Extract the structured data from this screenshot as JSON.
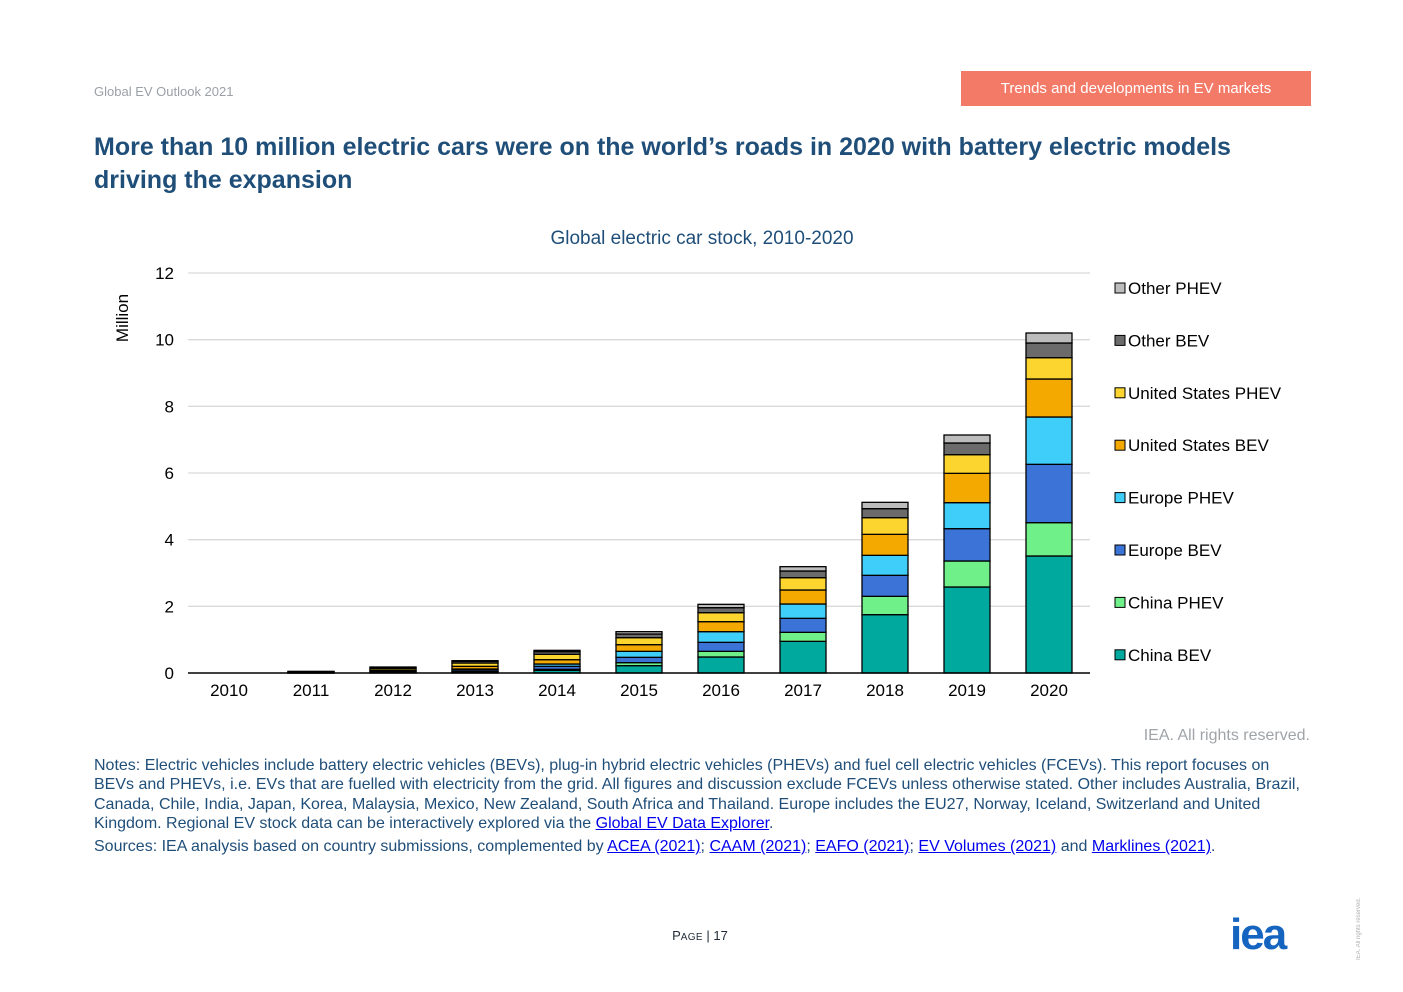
{
  "header": {
    "report_name": "Global EV Outlook 2021",
    "section_tag": "Trends and developments in EV markets"
  },
  "page_title": "More than 10 million electric cars were on the world’s roads in 2020 with battery electric models driving the expansion",
  "chart_data": {
    "type": "bar",
    "stacked": true,
    "title": "Global electric car stock, 2010-2020",
    "xlabel": "",
    "ylabel": "Million",
    "ylim": [
      0,
      12
    ],
    "yticks": [
      0,
      2,
      4,
      6,
      8,
      10,
      12
    ],
    "grid": true,
    "legend_position": "right",
    "categories": [
      "2010",
      "2011",
      "2012",
      "2013",
      "2014",
      "2015",
      "2016",
      "2017",
      "2018",
      "2019",
      "2020"
    ],
    "series": [
      {
        "name": "China BEV",
        "color": "#00a99d",
        "values": [
          0.0,
          0.01,
          0.02,
          0.03,
          0.08,
          0.22,
          0.48,
          0.95,
          1.75,
          2.58,
          3.51
        ]
      },
      {
        "name": "China PHEV",
        "color": "#6ff089",
        "values": [
          0.0,
          0.0,
          0.0,
          0.01,
          0.03,
          0.09,
          0.17,
          0.27,
          0.55,
          0.78,
          1.0
        ]
      },
      {
        "name": "Europe BEV",
        "color": "#3b74d6",
        "values": [
          0.0,
          0.01,
          0.03,
          0.05,
          0.09,
          0.16,
          0.27,
          0.42,
          0.63,
          0.97,
          1.75
        ]
      },
      {
        "name": "Europe PHEV",
        "color": "#3fcdf9",
        "values": [
          0.0,
          0.0,
          0.01,
          0.03,
          0.07,
          0.18,
          0.32,
          0.43,
          0.6,
          0.78,
          1.42
        ]
      },
      {
        "name": "United States BEV",
        "color": "#f4a900",
        "values": [
          0.0,
          0.01,
          0.03,
          0.08,
          0.13,
          0.2,
          0.3,
          0.42,
          0.63,
          0.88,
          1.14
        ]
      },
      {
        "name": "United States PHEV",
        "color": "#fcd52f",
        "values": [
          0.0,
          0.01,
          0.05,
          0.1,
          0.16,
          0.21,
          0.27,
          0.37,
          0.5,
          0.56,
          0.64
        ]
      },
      {
        "name": "Other BEV",
        "color": "#6b6b6b",
        "values": [
          0.0,
          0.01,
          0.03,
          0.05,
          0.08,
          0.11,
          0.15,
          0.2,
          0.27,
          0.35,
          0.44
        ]
      },
      {
        "name": "Other PHEV",
        "color": "#bcbcbc",
        "values": [
          0.0,
          0.0,
          0.01,
          0.02,
          0.04,
          0.07,
          0.1,
          0.13,
          0.19,
          0.24,
          0.3
        ]
      }
    ]
  },
  "credit": "IEA. All rights reserved.",
  "notes": {
    "text": "Notes: Electric vehicles include battery electric vehicles (BEVs), plug-in hybrid electric vehicles (PHEVs) and fuel cell electric vehicles (FCEVs). This report focuses on BEVs and PHEVs, i.e. EVs that are fuelled with electricity from the grid. All figures and discussion exclude FCEVs unless otherwise stated. Other includes Australia, Brazil, Canada, Chile, India, Japan, Korea, Malaysia, Mexico, New Zealand, South Africa and Thailand. Europe includes the EU27, Norway, Iceland, Switzerland and United Kingdom. Regional EV stock data can be interactively explored via the ",
    "link": "Global EV Data Explorer",
    "end": "."
  },
  "sources": {
    "prefix": "Sources: IEA analysis based on country submissions, complemented by ",
    "links": [
      "ACEA (2021)",
      "CAAM (2021)",
      "EAFO (2021)",
      "EV Volumes (2021)",
      "Marklines (2021)"
    ],
    "sep": "; ",
    "and": " and ",
    "end": "."
  },
  "page_number": {
    "label_first": "P",
    "label_rest": "AGE",
    "divider": " | ",
    "value": "17"
  },
  "logo_text": "iea",
  "vertical_rights": "IEA. All rights reserved."
}
